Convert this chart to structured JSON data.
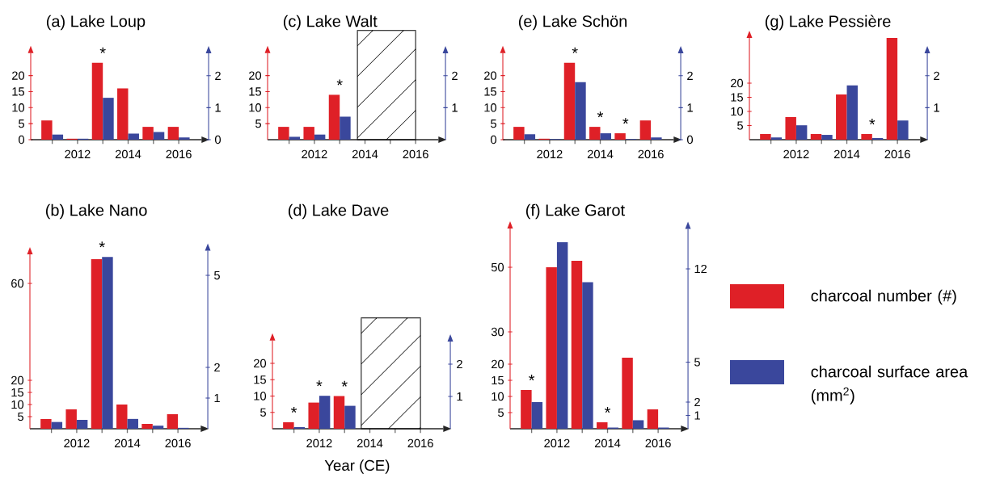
{
  "chart_data": [
    {
      "type": "bar",
      "title": "(a) Lake Loup",
      "categories": [
        null,
        "2012",
        null,
        "2014",
        null,
        "2016"
      ],
      "series": [
        {
          "color": "#df2027",
          "values": [
            6,
            0.3,
            24,
            16,
            4,
            4
          ],
          "value_labels": [
            null,
            null,
            "*",
            null,
            null,
            null
          ]
        },
        {
          "color": "#3a479c",
          "axis": "y2",
          "values": [
            0.16,
            0.03,
            1.31,
            0.19,
            0.24,
            0.07
          ]
        }
      ],
      "ylim": [
        0,
        27
      ],
      "yticks": [
        0,
        5,
        10,
        15,
        20
      ],
      "y2lim": [
        0,
        2.7
      ],
      "y2ticks": [
        0,
        1,
        2
      ]
    },
    {
      "type": "bar",
      "title": "(c) Lake Walt",
      "categories": [
        null,
        "2012",
        null,
        "2014",
        null,
        "2016"
      ],
      "series": [
        {
          "color": "#df2027",
          "values": [
            4,
            4,
            14,
            null,
            null,
            null
          ],
          "value_labels": [
            null,
            null,
            "*",
            null,
            null,
            null
          ]
        },
        {
          "color": "#3a479c",
          "axis": "y2",
          "values": [
            0.09,
            0.16,
            0.72,
            null,
            null,
            null
          ]
        }
      ],
      "ylim": [
        0,
        27
      ],
      "yticks": [
        5,
        10,
        15,
        20
      ],
      "y2lim": [
        0,
        2.7
      ],
      "y2ticks": [
        1,
        2
      ]
    },
    {
      "type": "bar",
      "title": "(e) Lake Schön",
      "categories": [
        null,
        "2012",
        null,
        "2014",
        null,
        "2016"
      ],
      "series": [
        {
          "color": "#df2027",
          "values": [
            4,
            0.3,
            24,
            4,
            2,
            6
          ],
          "value_labels": [
            null,
            null,
            "*",
            "*",
            "*",
            null
          ]
        },
        {
          "color": "#3a479c",
          "axis": "y2",
          "values": [
            0.17,
            0.02,
            1.8,
            0.2,
            0.02,
            0.07
          ]
        }
      ],
      "ylim": [
        0,
        27
      ],
      "yticks": [
        0,
        5,
        10,
        15,
        20
      ],
      "y2lim": [
        0,
        2.7
      ],
      "y2ticks": [
        0,
        1,
        2
      ]
    },
    {
      "type": "bar",
      "title": "(g) Lake Pessière",
      "categories": [
        null,
        "2012",
        null,
        "2014",
        null,
        "2016"
      ],
      "series": [
        {
          "color": "#df2027",
          "values": [
            2,
            8,
            2,
            16,
            2,
            36
          ],
          "value_labels": [
            null,
            null,
            null,
            null,
            "*",
            null
          ]
        },
        {
          "color": "#3a479c",
          "axis": "y2",
          "values": [
            0.07,
            0.45,
            0.15,
            1.7,
            0.05,
            0.6
          ]
        }
      ],
      "ylim": [
        0,
        36
      ],
      "yticks": [
        5,
        10,
        15,
        20
      ],
      "y2lim": [
        0,
        2.7
      ],
      "y2ticks": [
        1,
        2
      ]
    },
    {
      "type": "bar",
      "title": "(b) Lake Nano",
      "categories": [
        null,
        "2012",
        null,
        "2014",
        null,
        "2016"
      ],
      "series": [
        {
          "color": "#df2027",
          "values": [
            4,
            8,
            70,
            10,
            2,
            6
          ],
          "value_labels": [
            null,
            null,
            "*",
            null,
            null,
            null
          ]
        },
        {
          "color": "#3a479c",
          "axis": "y2",
          "values": [
            0.22,
            0.29,
            5.6,
            0.32,
            0.1,
            0.03
          ]
        }
      ],
      "ylim": [
        0,
        72
      ],
      "yticks": [
        5,
        10,
        15,
        20,
        60
      ],
      "y2lim": [
        0,
        5.8
      ],
      "y2ticks": [
        1,
        2,
        5
      ]
    },
    {
      "type": "bar",
      "title": "(d) Lake Dave",
      "xlabel": "Year (CE)",
      "categories": [
        null,
        "2012",
        null,
        "2014",
        null,
        "2016"
      ],
      "series": [
        {
          "color": "#df2027",
          "values": [
            2,
            8,
            10,
            null,
            null,
            null
          ],
          "value_labels": [
            "*",
            "*",
            "*",
            null,
            null,
            null
          ]
        },
        {
          "color": "#3a479c",
          "axis": "y2",
          "values": [
            0.05,
            1.02,
            0.71,
            null,
            null,
            null
          ]
        }
      ],
      "ylim": [
        0,
        27
      ],
      "yticks": [
        5,
        10,
        15,
        20
      ],
      "y2lim": [
        0,
        2.7
      ],
      "y2ticks": [
        1,
        2
      ]
    },
    {
      "type": "bar",
      "title": "(f) Lake Garot",
      "categories": [
        null,
        "2012",
        null,
        "2014",
        null,
        "2016"
      ],
      "series": [
        {
          "name": "charcoal number (#)",
          "color": "#df2027",
          "values": [
            12,
            50,
            52,
            2,
            22,
            6
          ],
          "value_labels": [
            "*",
            null,
            null,
            "*",
            null,
            null
          ]
        },
        {
          "name": "charcoal surface area (mm$^{2}$)",
          "color": "#3a479c",
          "axis": "y2",
          "values": [
            2,
            14,
            11,
            0.09,
            0.64,
            0.09
          ]
        }
      ],
      "ylim": [
        0,
        62
      ],
      "yticks": [
        5,
        10,
        15,
        20,
        30,
        50
      ],
      "y2lim": [
        0,
        15
      ],
      "y2ticks": [
        1,
        2,
        5,
        12
      ],
      "legend": "right"
    }
  ]
}
